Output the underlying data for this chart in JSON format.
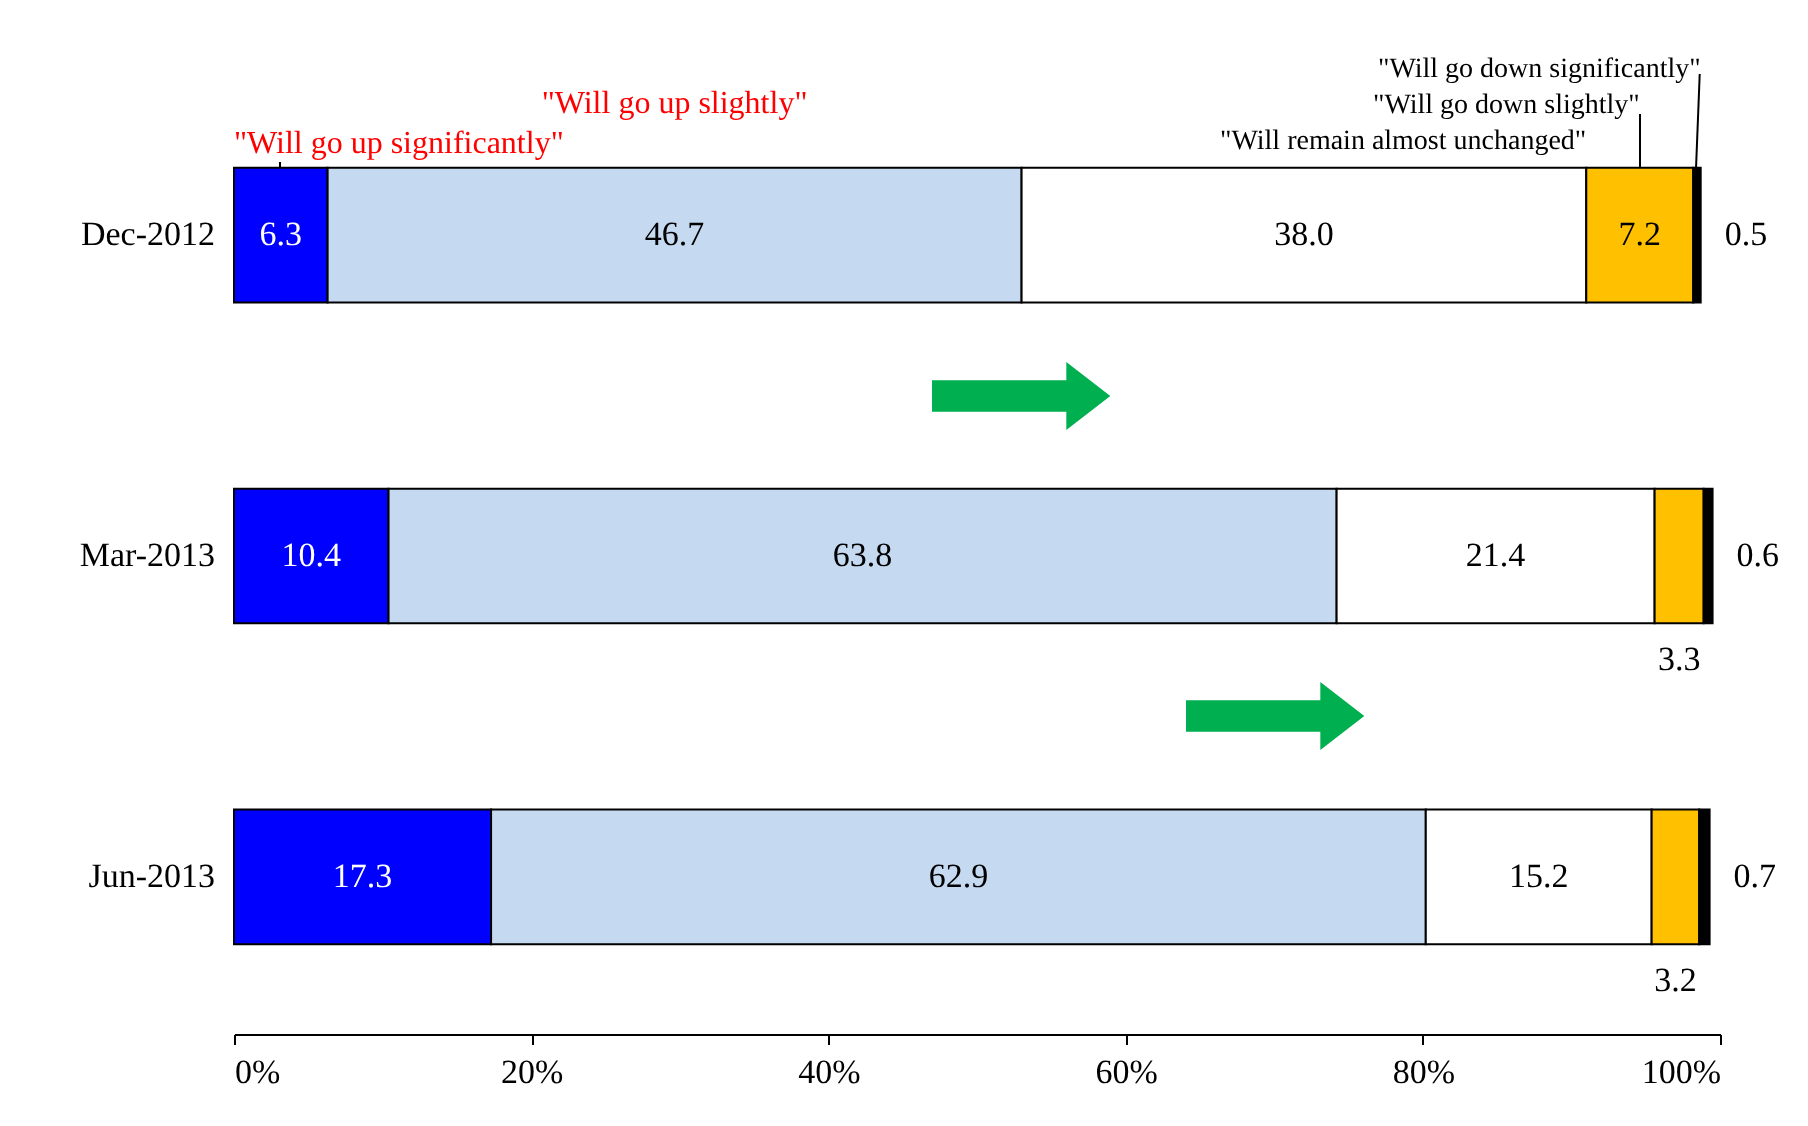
{
  "chart_data": {
    "type": "bar",
    "orientation": "horizontal",
    "stacked": true,
    "categories": [
      "Dec-2012",
      "Mar-2013",
      "Jun-2013"
    ],
    "series": [
      {
        "name": "\"Will go up significantly\"",
        "color": "#0000ff",
        "values": [
          6.3,
          10.4,
          17.3
        ]
      },
      {
        "name": "\"Will go up slightly\"",
        "color": "#c5d9f1",
        "values": [
          46.7,
          63.8,
          62.9
        ]
      },
      {
        "name": "\"Will remain almost unchanged\"",
        "color": "#ffffff",
        "values": [
          38.0,
          21.4,
          15.2
        ]
      },
      {
        "name": "\"Will go down slightly\"",
        "color": "#ffc000",
        "values": [
          7.2,
          3.3,
          3.2
        ]
      },
      {
        "name": "\"Will go down significantly\"",
        "color": "#000000",
        "values": [
          0.5,
          0.6,
          0.7
        ]
      }
    ],
    "value_labels": [
      [
        "6.3",
        "10.4",
        "17.3"
      ],
      [
        "46.7",
        "63.8",
        "62.9"
      ],
      [
        "38.0",
        "21.4",
        "15.2"
      ],
      [
        "7.2",
        "3.3",
        "3.2"
      ],
      [
        "0.5",
        "0.6",
        "0.7"
      ]
    ],
    "xlim": [
      0,
      100
    ],
    "xticks": [
      {
        "value": 0,
        "label": "0%"
      },
      {
        "value": 20,
        "label": "20%"
      },
      {
        "value": 40,
        "label": "40%"
      },
      {
        "value": 60,
        "label": "60%"
      },
      {
        "value": 80,
        "label": "80%"
      },
      {
        "value": 100,
        "label": "100%"
      }
    ],
    "grid": false
  }
}
